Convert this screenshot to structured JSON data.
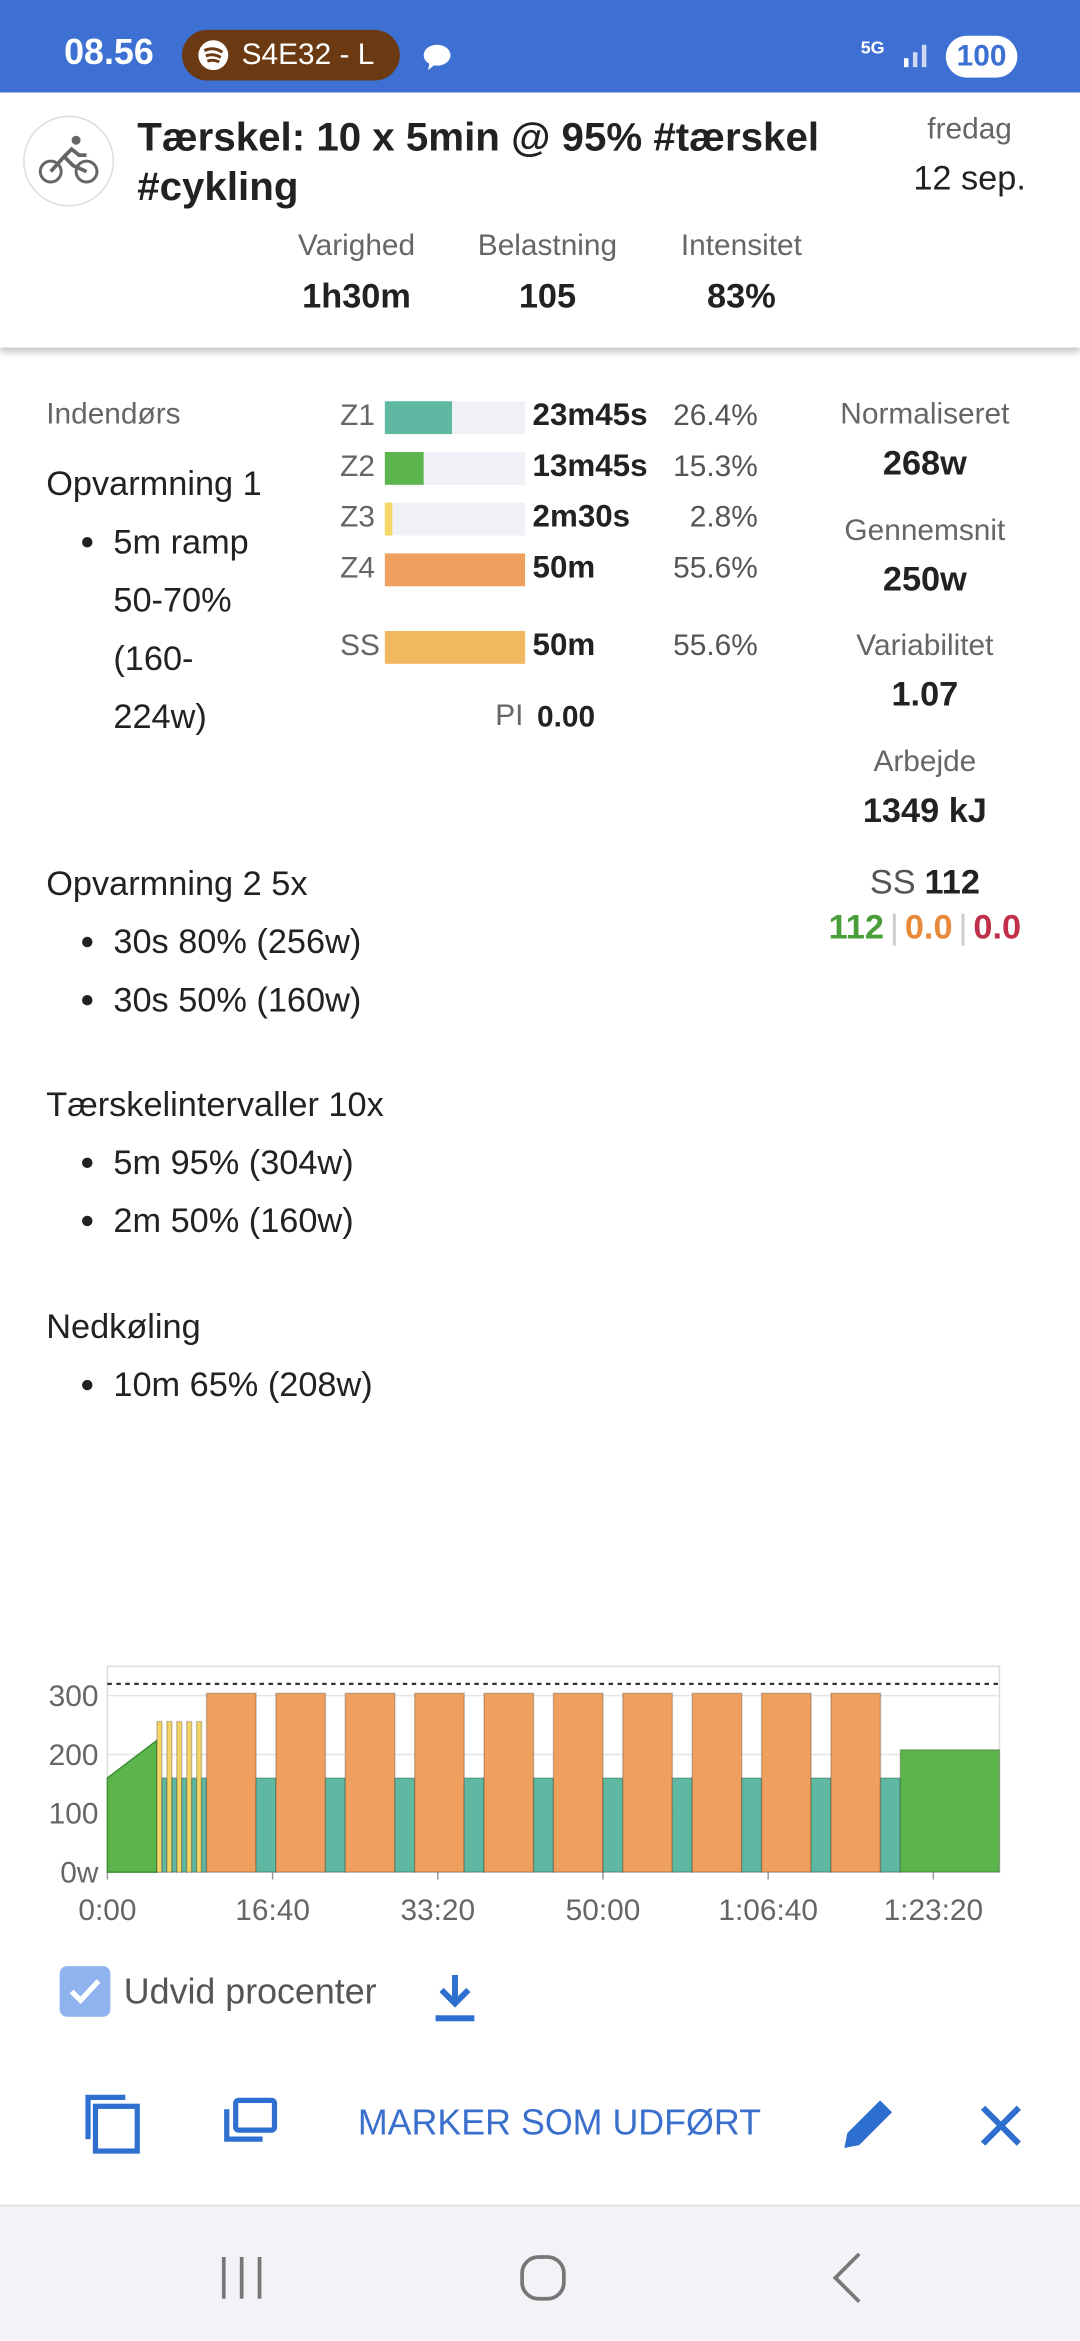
{
  "status_bar": {
    "time": "08.56",
    "media": "S4E32 - L",
    "network": "5G",
    "battery": "100"
  },
  "header": {
    "title": "Tærskel: 10 x 5min @ 95% #tærskel #cykling",
    "day": "fredag",
    "date": "12 sep.",
    "stats": [
      {
        "label": "Varighed",
        "value": "1h30m"
      },
      {
        "label": "Belastning",
        "value": "105"
      },
      {
        "label": "Intensitet",
        "value": "83%"
      }
    ]
  },
  "workout": {
    "location": "Indendørs",
    "sections": [
      {
        "title": "Opvarmning 1",
        "steps": [
          "5m ramp 50-70% (160-224w)"
        ]
      },
      {
        "title": "Opvarmning 2 5x",
        "steps": [
          "30s 80% (256w)",
          "30s 50% (160w)"
        ]
      },
      {
        "title": "Tærskelintervaller 10x",
        "steps": [
          "5m 95% (304w)",
          "2m 50% (160w)"
        ]
      },
      {
        "title": "Nedkøling",
        "steps": [
          "10m 65% (208w)"
        ]
      }
    ]
  },
  "zones": {
    "rows": [
      {
        "name": "Z1",
        "color": "#5fb9a2",
        "time": "23m45s",
        "percent": 26.4,
        "percent_label": "26.4%"
      },
      {
        "name": "Z2",
        "color": "#5cb54c",
        "time": "13m45s",
        "percent": 15.3,
        "percent_label": "15.3%"
      },
      {
        "name": "Z3",
        "color": "#f4d565",
        "time": "2m30s",
        "percent": 2.8,
        "percent_label": "2.8%"
      },
      {
        "name": "Z4",
        "color": "#f0a05e",
        "time": "50m",
        "percent": 55.6,
        "percent_label": "55.6%"
      }
    ],
    "ss": {
      "name": "SS",
      "color": "#f2b860",
      "time": "50m",
      "percent": 55.6,
      "percent_label": "55.6%"
    },
    "pi_label": "PI",
    "pi": "0.00"
  },
  "metrics": [
    {
      "label": "Normaliseret",
      "value": "268w"
    },
    {
      "label": "Gennemsnit",
      "value": "250w"
    },
    {
      "label": "Variabilitet",
      "value": "1.07"
    },
    {
      "label": "Arbejde",
      "value": "1349 kJ"
    }
  ],
  "stress": {
    "label": "SS",
    "value": "112",
    "split": [
      {
        "value": "112",
        "color": "#4a9e3a"
      },
      {
        "value": "0.0",
        "color": "#e88a3a"
      },
      {
        "value": "0.0",
        "color": "#c0304a"
      }
    ]
  },
  "power_chart": {
    "type": "area",
    "xlim": [
      0,
      5400
    ],
    "ylim": [
      0,
      350
    ],
    "ftp": 320,
    "xticks": [
      {
        "value": 0,
        "label": "0:00"
      },
      {
        "value": 1000,
        "label": "16:40"
      },
      {
        "value": 2000,
        "label": "33:20"
      },
      {
        "value": 3000,
        "label": "50:00"
      },
      {
        "value": 4000,
        "label": "1:06:40"
      },
      {
        "value": 5000,
        "label": "1:23:20"
      }
    ],
    "yticks": [
      {
        "value": 0,
        "label": "0w"
      },
      100,
      200,
      300
    ],
    "segments": [
      {
        "start": 0,
        "end": 300,
        "watts": 160,
        "watts_end": 224,
        "zone": 1
      },
      {
        "start": 300,
        "end": 330,
        "watts": 256,
        "zone": 2
      },
      {
        "start": 330,
        "end": 360,
        "watts": 160,
        "zone": 0
      },
      {
        "start": 360,
        "end": 390,
        "watts": 256,
        "zone": 2
      },
      {
        "start": 390,
        "end": 420,
        "watts": 160,
        "zone": 0
      },
      {
        "start": 420,
        "end": 450,
        "watts": 256,
        "zone": 2
      },
      {
        "start": 450,
        "end": 480,
        "watts": 160,
        "zone": 0
      },
      {
        "start": 480,
        "end": 510,
        "watts": 256,
        "zone": 2
      },
      {
        "start": 510,
        "end": 540,
        "watts": 160,
        "zone": 0
      },
      {
        "start": 540,
        "end": 570,
        "watts": 256,
        "zone": 2
      },
      {
        "start": 570,
        "end": 600,
        "watts": 160,
        "zone": 0
      },
      {
        "start": 600,
        "end": 900,
        "watts": 304,
        "zone": 3
      },
      {
        "start": 900,
        "end": 1020,
        "watts": 160,
        "zone": 0
      },
      {
        "start": 1020,
        "end": 1320,
        "watts": 304,
        "zone": 3
      },
      {
        "start": 1320,
        "end": 1440,
        "watts": 160,
        "zone": 0
      },
      {
        "start": 1440,
        "end": 1740,
        "watts": 304,
        "zone": 3
      },
      {
        "start": 1740,
        "end": 1860,
        "watts": 160,
        "zone": 0
      },
      {
        "start": 1860,
        "end": 2160,
        "watts": 304,
        "zone": 3
      },
      {
        "start": 2160,
        "end": 2280,
        "watts": 160,
        "zone": 0
      },
      {
        "start": 2280,
        "end": 2580,
        "watts": 304,
        "zone": 3
      },
      {
        "start": 2580,
        "end": 2700,
        "watts": 160,
        "zone": 0
      },
      {
        "start": 2700,
        "end": 3000,
        "watts": 304,
        "zone": 3
      },
      {
        "start": 3000,
        "end": 3120,
        "watts": 160,
        "zone": 0
      },
      {
        "start": 3120,
        "end": 3420,
        "watts": 304,
        "zone": 3
      },
      {
        "start": 3420,
        "end": 3540,
        "watts": 160,
        "zone": 0
      },
      {
        "start": 3540,
        "end": 3840,
        "watts": 304,
        "zone": 3
      },
      {
        "start": 3840,
        "end": 3960,
        "watts": 160,
        "zone": 0
      },
      {
        "start": 3960,
        "end": 4260,
        "watts": 304,
        "zone": 3
      },
      {
        "start": 4260,
        "end": 4380,
        "watts": 160,
        "zone": 0
      },
      {
        "start": 4380,
        "end": 4680,
        "watts": 304,
        "zone": 3
      },
      {
        "start": 4680,
        "end": 4800,
        "watts": 160,
        "zone": 0
      },
      {
        "start": 4800,
        "end": 5400,
        "watts": 208,
        "zone": 1
      }
    ]
  },
  "options": {
    "expand_label": "Udvid procenter",
    "checked": true
  },
  "actions": {
    "mark_done": "MARKER SOM UDFØRT"
  }
}
